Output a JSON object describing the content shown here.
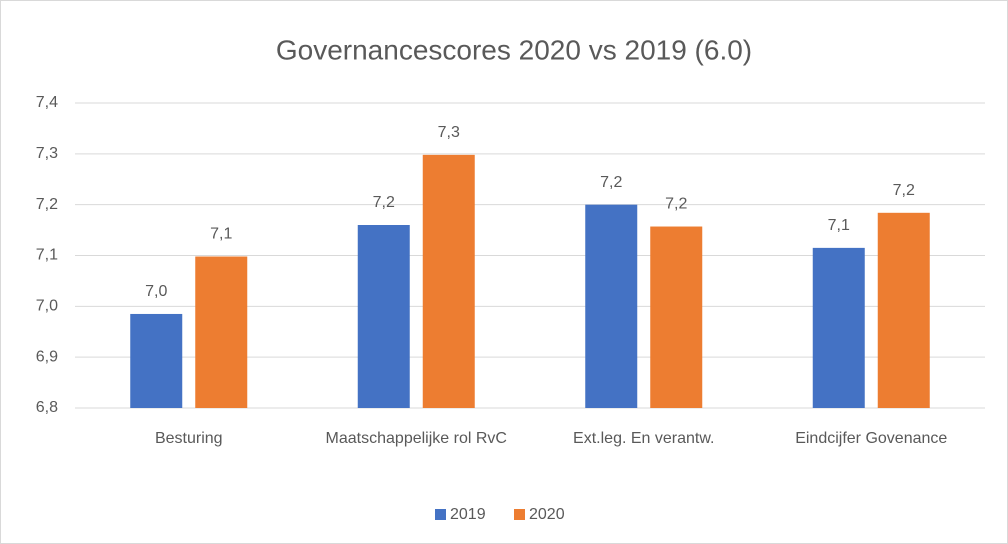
{
  "chart_data": {
    "type": "bar",
    "title": "Governancescores 2020 vs 2019 (6.0)",
    "categories": [
      "Besturing",
      "Maatschappelijke rol RvC",
      "Ext.leg. En verantw.",
      "Eindcijfer Govenance"
    ],
    "series": [
      {
        "name": "2019",
        "color": "#4472c4",
        "values": [
          6.985,
          7.16,
          7.2,
          7.115
        ],
        "value_labels": [
          "7,0",
          "7,2",
          "7,2",
          "7,1"
        ]
      },
      {
        "name": "2020",
        "color": "#ed7d31",
        "values": [
          7.098,
          7.298,
          7.157,
          7.184
        ],
        "value_labels": [
          "7,1",
          "7,3",
          "7,2",
          "7,2"
        ]
      }
    ],
    "ylim": [
      6.8,
      7.4
    ],
    "yticks": [
      {
        "value": 6.8,
        "label": "6,8"
      },
      {
        "value": 6.9,
        "label": "6,9"
      },
      {
        "value": 7.0,
        "label": "7,0"
      },
      {
        "value": 7.1,
        "label": "7,1"
      },
      {
        "value": 7.2,
        "label": "7,2"
      },
      {
        "value": 7.3,
        "label": "7,3"
      },
      {
        "value": 7.4,
        "label": "7,4"
      }
    ],
    "grid": true,
    "legend": "bottom"
  }
}
